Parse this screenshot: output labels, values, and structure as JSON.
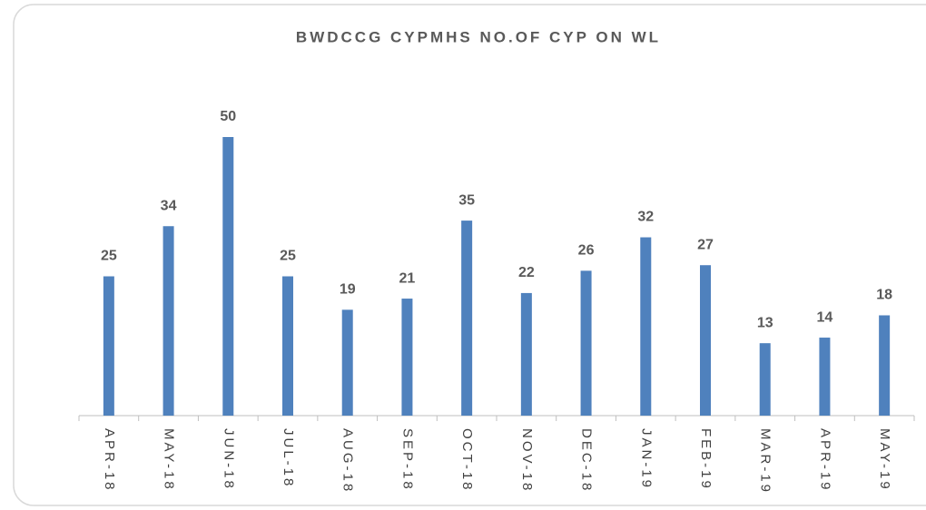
{
  "chart_data": {
    "type": "bar",
    "title": "BWDCCG CYPMHS NO.OF CYP ON WL",
    "categories": [
      "APR-18",
      "MAY-18",
      "JUN-18",
      "JUL-18",
      "AUG-18",
      "SEP-18",
      "OCT-18",
      "NOV-18",
      "DEC-18",
      "JAN-19",
      "FEB-19",
      "MAR-19",
      "APR-19",
      "MAY-19"
    ],
    "values": [
      25,
      34,
      50,
      25,
      19,
      21,
      35,
      22,
      26,
      32,
      27,
      13,
      14,
      18
    ],
    "color": "#4f81bd"
  }
}
